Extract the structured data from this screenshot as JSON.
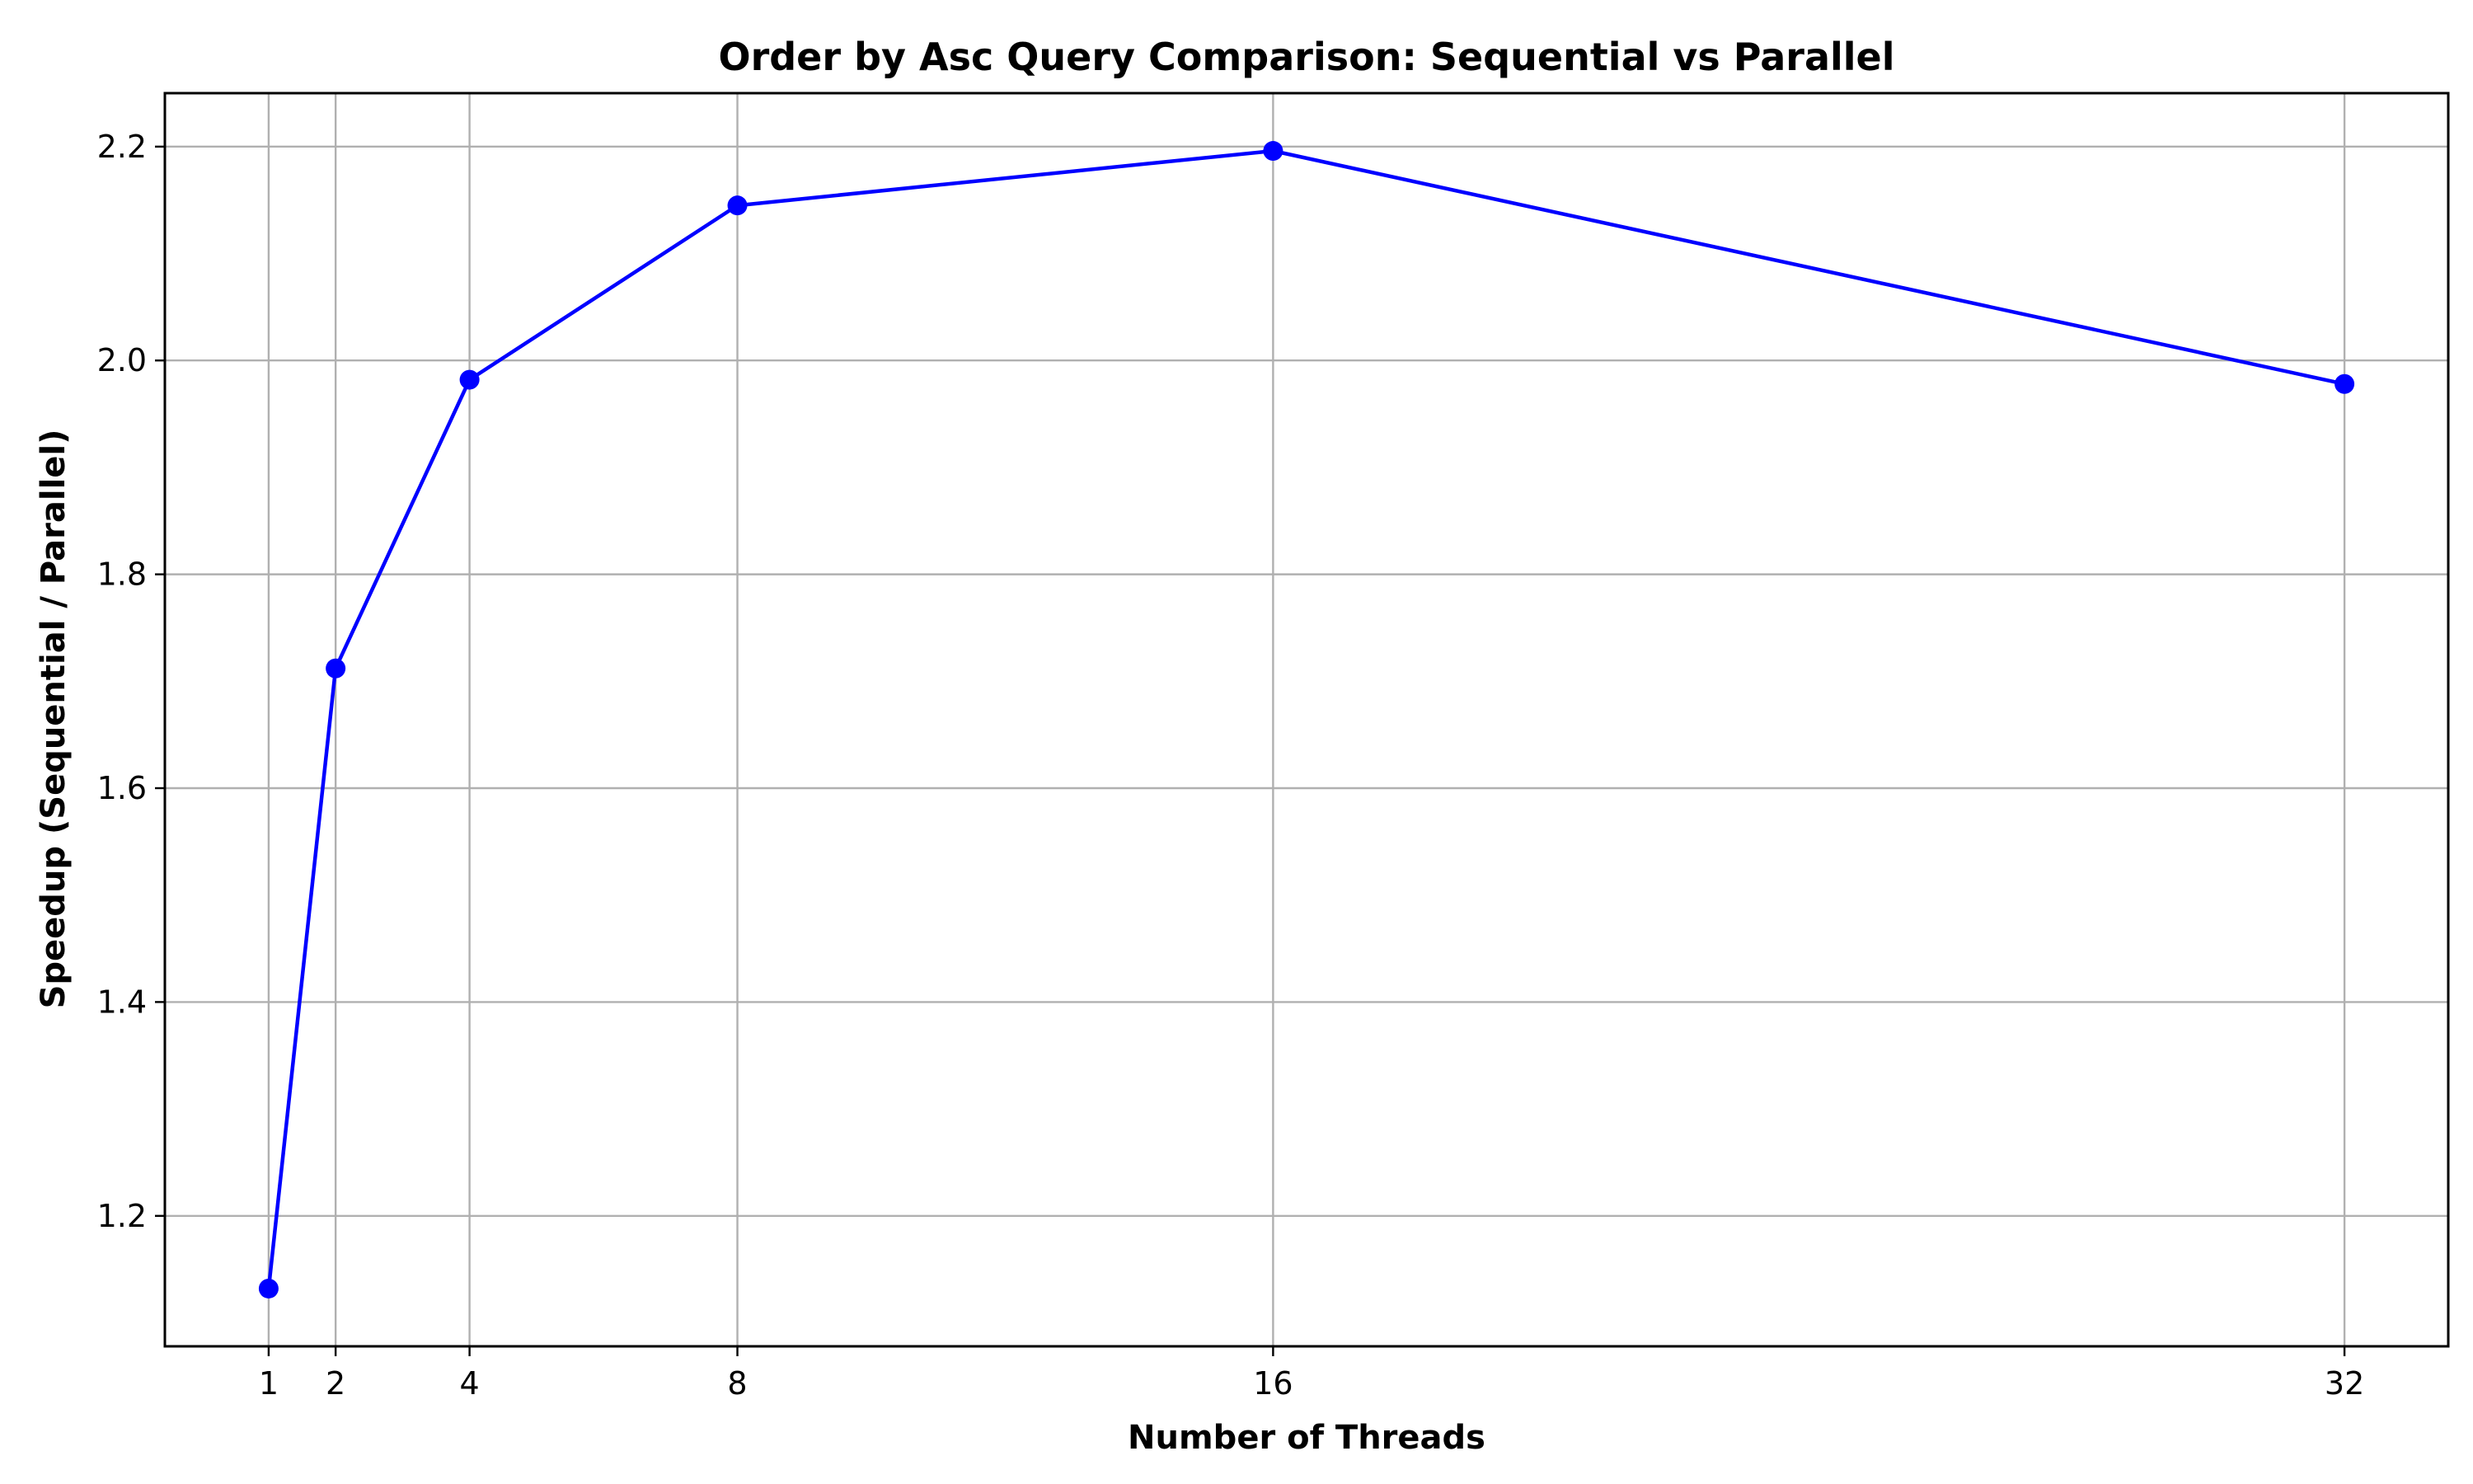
{
  "chart_data": {
    "type": "line",
    "title": "Order by Asc Query Comparison: Sequential vs Parallel",
    "xlabel": "Number of Threads",
    "ylabel": "Speedup (Sequential / Parallel)",
    "x": [
      1,
      2,
      4,
      8,
      16,
      32
    ],
    "x_tick_labels": [
      "1",
      "2",
      "4",
      "8",
      "16",
      "32"
    ],
    "y_ticks": [
      1.2,
      1.4,
      1.6,
      1.8,
      2.0,
      2.2
    ],
    "y_tick_labels": [
      "1.2",
      "1.4",
      "1.6",
      "1.8",
      "2.0",
      "2.2"
    ],
    "xlim": [
      -0.55,
      33.55
    ],
    "ylim": [
      1.078,
      2.25
    ],
    "grid": true,
    "series": [
      {
        "values": [
          1.132,
          1.712,
          1.982,
          2.145,
          2.196,
          1.978
        ],
        "color": "#0000ff",
        "marker": "circle"
      }
    ]
  }
}
